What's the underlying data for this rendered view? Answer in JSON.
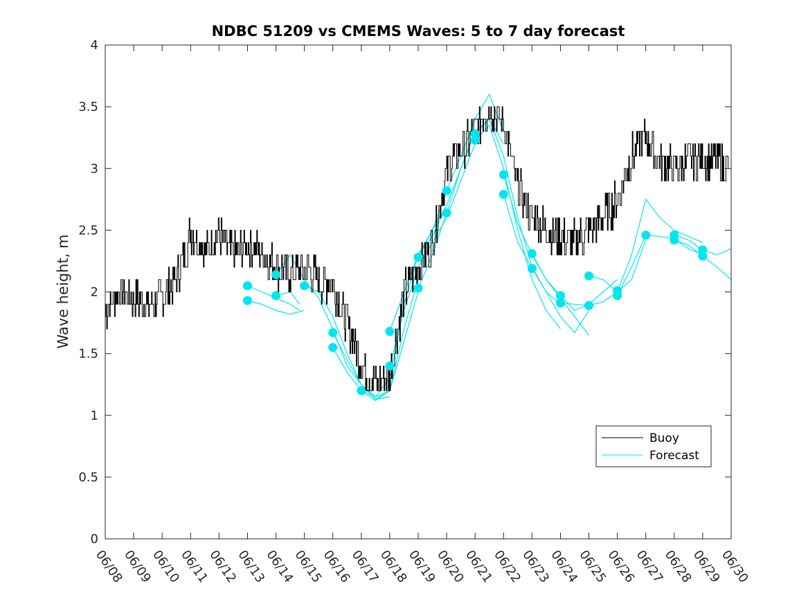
{
  "chart_data": {
    "type": "line",
    "title": "NDBC 51209 vs CMEMS Waves: 5 to 7 day forecast",
    "xlabel": "",
    "ylabel": "Wave height, m",
    "xlim": [
      "06/08",
      "06/30"
    ],
    "ylim": [
      0,
      4
    ],
    "x_tick_labels": [
      "06/08",
      "06/09",
      "06/10",
      "06/11",
      "06/12",
      "06/13",
      "06/14",
      "06/15",
      "06/16",
      "06/17",
      "06/18",
      "06/19",
      "06/20",
      "06/21",
      "06/22",
      "06/23",
      "06/24",
      "06/25",
      "06/26",
      "06/27",
      "06/28",
      "06/29",
      "06/30"
    ],
    "y_ticks": [
      0,
      0.5,
      1,
      1.5,
      2,
      2.5,
      3,
      3.5,
      4
    ],
    "y_tick_labels": [
      "0",
      "0.5",
      "1",
      "1.5",
      "2",
      "2.5",
      "3",
      "3.5",
      "4"
    ],
    "grid": false,
    "legend": {
      "placement": "bottom-right",
      "entries": [
        "Buoy",
        "Forecast"
      ]
    },
    "colors": {
      "buoy": "#000000",
      "forecast": "#00e5ee"
    },
    "buoy": {
      "name": "Buoy",
      "x": [
        "06/08 00:00",
        "06/08 12:00",
        "06/09 00:00",
        "06/09 12:00",
        "06/10 00:00",
        "06/10 12:00",
        "06/10 18:00",
        "06/11 00:00",
        "06/11 12:00",
        "06/12 00:00",
        "06/12 12:00",
        "06/13 00:00",
        "06/13 12:00",
        "06/14 00:00",
        "06/14 12:00",
        "06/15 00:00",
        "06/15 12:00",
        "06/16 00:00",
        "06/16 12:00",
        "06/17 00:00",
        "06/17 12:00",
        "06/18 00:00",
        "06/18 12:00",
        "06/19 00:00",
        "06/19 12:00",
        "06/20 00:00",
        "06/20 12:00",
        "06/21 00:00",
        "06/21 12:00",
        "06/22 00:00",
        "06/22 12:00",
        "06/23 00:00",
        "06/23 12:00",
        "06/24 00:00",
        "06/24 12:00",
        "06/25 00:00",
        "06/25 12:00",
        "06/26 00:00",
        "06/26 12:00",
        "06/27 00:00",
        "06/27 12:00",
        "06/28 00:00",
        "06/28 12:00",
        "06/29 00:00",
        "06/29 12:00",
        "06/29 22:00"
      ],
      "y": [
        1.85,
        2.0,
        1.95,
        1.9,
        1.95,
        2.1,
        2.3,
        2.5,
        2.35,
        2.45,
        2.3,
        2.4,
        2.3,
        2.2,
        2.15,
        2.2,
        2.1,
        2.05,
        1.75,
        1.4,
        1.25,
        1.3,
        2.0,
        2.2,
        2.4,
        3.0,
        3.15,
        3.3,
        3.5,
        3.35,
        2.85,
        2.6,
        2.5,
        2.45,
        2.4,
        2.5,
        2.6,
        2.75,
        3.1,
        3.25,
        3.05,
        3.0,
        3.05,
        3.1,
        3.05,
        3.0
      ]
    },
    "forecasts": [
      {
        "name": "Forecast",
        "x": [
          "06/13 00:00",
          "06/13 12:00",
          "06/14 00:00",
          "06/14 12:00",
          "06/14 20:00"
        ],
        "y": [
          2.05,
          2.0,
          1.95,
          1.9,
          1.85
        ]
      },
      {
        "name": "Forecast",
        "x": [
          "06/13 00:00",
          "06/13 12:00",
          "06/14 00:00",
          "06/14 12:00",
          "06/15 00:00"
        ],
        "y": [
          1.93,
          1.9,
          1.85,
          1.82,
          1.85
        ]
      },
      {
        "name": "Forecast",
        "x": [
          "06/14 00:00",
          "06/14 12:00",
          "06/15 00:00",
          "06/15 12:00",
          "06/16 00:00",
          "06/16 12:00",
          "06/17 00:00",
          "06/17 12:00",
          "06/18 00:00"
        ],
        "y": [
          2.14,
          2.3,
          2.1,
          1.95,
          1.7,
          1.4,
          1.25,
          1.15,
          1.2
        ]
      },
      {
        "name": "Forecast",
        "x": [
          "06/14 00:00",
          "06/14 12:00",
          "06/14 20:00"
        ],
        "y": [
          1.97,
          2.0,
          1.9
        ]
      },
      {
        "name": "Forecast",
        "x": [
          "06/15 00:00",
          "06/15 12:00",
          "06/16 00:00",
          "06/16 12:00",
          "06/17 00:00",
          "06/17 12:00",
          "06/18 00:00"
        ],
        "y": [
          2.05,
          2.0,
          1.8,
          1.5,
          1.25,
          1.13,
          1.15
        ]
      },
      {
        "name": "Forecast",
        "x": [
          "06/16 00:00",
          "06/16 12:00",
          "06/17 00:00",
          "06/17 12:00",
          "06/18 00:00",
          "06/18 12:00",
          "06/19 00:00"
        ],
        "y": [
          1.67,
          1.45,
          1.25,
          1.13,
          1.2,
          1.6,
          2.0
        ]
      },
      {
        "name": "Forecast",
        "x": [
          "06/16 00:00",
          "06/16 12:00",
          "06/17 00:00",
          "06/17 12:00",
          "06/18 00:00",
          "06/18 12:00",
          "06/19 00:00"
        ],
        "y": [
          1.55,
          1.35,
          1.2,
          1.12,
          1.2,
          1.7,
          2.1
        ]
      },
      {
        "name": "Forecast",
        "x": [
          "06/17 00:00",
          "06/17 12:00",
          "06/18 00:00",
          "06/18 12:00",
          "06/19 00:00",
          "06/19 12:00",
          "06/20 00:00"
        ],
        "y": [
          1.2,
          1.15,
          1.3,
          1.9,
          2.3,
          2.5,
          2.7
        ]
      },
      {
        "name": "Forecast",
        "x": [
          "06/18 00:00",
          "06/18 12:00",
          "06/19 00:00",
          "06/19 12:00",
          "06/20 00:00",
          "06/20 12:00",
          "06/21 00:00"
        ],
        "y": [
          1.68,
          2.0,
          2.3,
          2.45,
          2.7,
          3.0,
          3.3
        ]
      },
      {
        "name": "Forecast",
        "x": [
          "06/18 00:00",
          "06/18 12:00",
          "06/19 00:00",
          "06/19 12:00",
          "06/20 00:00",
          "06/20 12:00",
          "06/21 00:00"
        ],
        "y": [
          1.4,
          1.85,
          2.2,
          2.4,
          2.6,
          2.9,
          3.2
        ]
      },
      {
        "name": "Forecast",
        "x": [
          "06/19 00:00",
          "06/19 12:00",
          "06/20 00:00",
          "06/20 12:00",
          "06/21 00:00",
          "06/21 12:00",
          "06/22 00:00"
        ],
        "y": [
          2.28,
          2.5,
          2.82,
          3.1,
          3.4,
          3.6,
          3.3
        ]
      },
      {
        "name": "Forecast",
        "x": [
          "06/19 00:00",
          "06/19 12:00",
          "06/20 00:00",
          "06/20 12:00",
          "06/21 00:00",
          "06/21 12:00",
          "06/22 00:00"
        ],
        "y": [
          2.03,
          2.3,
          2.64,
          3.0,
          3.3,
          3.4,
          3.2
        ]
      },
      {
        "name": "Forecast",
        "x": [
          "06/21 00:00",
          "06/21 12:00",
          "06/22 00:00",
          "06/22 12:00",
          "06/23 00:00",
          "06/23 12:00",
          "06/24 00:00"
        ],
        "y": [
          3.28,
          3.4,
          3.1,
          2.6,
          2.2,
          2.0,
          1.9
        ]
      },
      {
        "name": "Forecast",
        "x": [
          "06/21 00:00",
          "06/21 12:00",
          "06/22 00:00",
          "06/22 12:00",
          "06/23 00:00",
          "06/23 12:00",
          "06/24 00:00"
        ],
        "y": [
          3.23,
          3.35,
          3.0,
          2.5,
          2.1,
          1.85,
          1.7
        ]
      },
      {
        "name": "Forecast",
        "x": [
          "06/22 00:00",
          "06/22 12:00",
          "06/23 00:00",
          "06/23 12:00",
          "06/24 00:00",
          "06/24 12:00",
          "06/25 00:00"
        ],
        "y": [
          2.95,
          2.55,
          2.3,
          2.1,
          1.95,
          1.8,
          1.65
        ]
      },
      {
        "name": "Forecast",
        "x": [
          "06/22 00:00",
          "06/22 12:00",
          "06/23 00:00",
          "06/23 12:00",
          "06/24 00:00",
          "06/24 12:00",
          "06/25 00:00"
        ],
        "y": [
          2.79,
          2.4,
          2.19,
          2.0,
          1.8,
          1.67,
          1.85
        ]
      },
      {
        "name": "Forecast",
        "x": [
          "06/23 00:00",
          "06/23 12:00",
          "06/24 00:00",
          "06/24 12:00",
          "06/25 00:00",
          "06/25 12:00",
          "06/26 00:00"
        ],
        "y": [
          2.31,
          2.1,
          1.97,
          1.85,
          1.9,
          2.0,
          2.1
        ]
      },
      {
        "name": "Forecast",
        "x": [
          "06/24 00:00",
          "06/24 12:00",
          "06/25 00:00",
          "06/25 12:00",
          "06/26 00:00"
        ],
        "y": [
          1.91,
          1.9,
          1.89,
          1.92,
          2.0
        ]
      },
      {
        "name": "Forecast",
        "x": [
          "06/25 00:00",
          "06/25 12:00",
          "06/26 00:00",
          "06/26 12:00",
          "06/27 00:00"
        ],
        "y": [
          2.13,
          2.1,
          2.0,
          2.1,
          2.42
        ]
      },
      {
        "name": "Forecast",
        "x": [
          "06/26 00:00",
          "06/26 12:00",
          "06/27 00:00",
          "06/27 12:00",
          "06/28 00:00",
          "06/28 12:00",
          "06/29 00:00"
        ],
        "y": [
          2.0,
          2.3,
          2.75,
          2.6,
          2.5,
          2.45,
          2.4
        ]
      },
      {
        "name": "Forecast",
        "x": [
          "06/26 00:00",
          "06/26 12:00",
          "06/27 00:00",
          "06/27 12:00",
          "06/28 00:00",
          "06/28 12:00",
          "06/29 00:00"
        ],
        "y": [
          1.97,
          2.2,
          2.46,
          2.45,
          2.43,
          2.35,
          2.3
        ]
      },
      {
        "name": "Forecast",
        "x": [
          "06/28 00:00",
          "06/28 12:00",
          "06/29 00:00",
          "06/29 12:00",
          "06/30 00:00"
        ],
        "y": [
          2.46,
          2.42,
          2.34,
          2.3,
          2.35
        ]
      },
      {
        "name": "Forecast",
        "x": [
          "06/28 00:00",
          "06/28 12:00",
          "06/29 00:00",
          "06/29 12:00",
          "06/30 00:00"
        ],
        "y": [
          2.42,
          2.38,
          2.29,
          2.2,
          2.1
        ]
      }
    ],
    "markers": {
      "name": "Forecast",
      "x": [
        "06/13 00:00",
        "06/13 00:00",
        "06/14 00:00",
        "06/14 00:00",
        "06/15 00:00",
        "06/16 00:00",
        "06/16 00:00",
        "06/17 00:00",
        "06/18 00:00",
        "06/18 00:00",
        "06/19 00:00",
        "06/19 00:00",
        "06/20 00:00",
        "06/20 00:00",
        "06/21 00:00",
        "06/21 00:00",
        "06/22 00:00",
        "06/22 00:00",
        "06/23 00:00",
        "06/23 00:00",
        "06/24 00:00",
        "06/24 00:00",
        "06/25 00:00",
        "06/25 00:00",
        "06/26 00:00",
        "06/26 00:00",
        "06/27 00:00",
        "06/28 00:00",
        "06/28 00:00",
        "06/29 00:00",
        "06/29 00:00"
      ],
      "y": [
        2.05,
        1.93,
        2.14,
        1.97,
        2.05,
        1.67,
        1.55,
        1.2,
        1.68,
        1.4,
        2.28,
        2.03,
        2.82,
        2.64,
        3.28,
        3.23,
        2.95,
        2.79,
        2.31,
        2.19,
        1.97,
        1.91,
        2.13,
        1.89,
        2.01,
        1.97,
        2.46,
        2.46,
        2.42,
        2.34,
        2.29
      ]
    }
  }
}
